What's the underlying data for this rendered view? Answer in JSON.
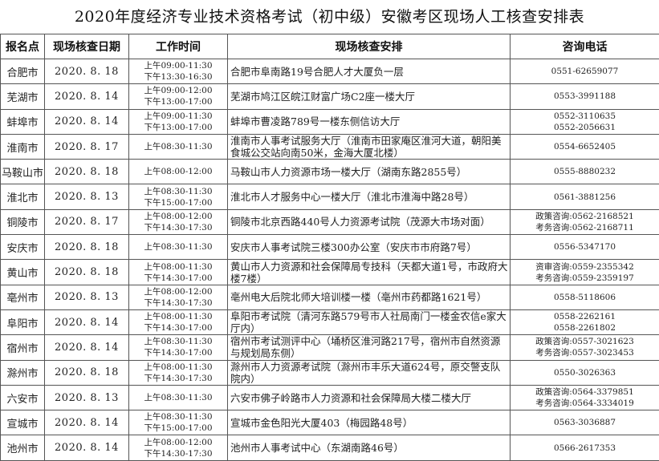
{
  "title": "2020年度经济专业技术资格考试（初中级）安徽考区现场人工核查安排表",
  "headers": [
    "报名点",
    "现场核查日期",
    "工作时间",
    "现场核查安排",
    "咨询电话"
  ],
  "rows": [
    {
      "city": "合肥市",
      "date": "2020. 8. 18",
      "times": [
        "上午09:00-11:30",
        "下午13:30-16:30"
      ],
      "address": "合肥市阜南路19号合肥人才大厦负一层",
      "phones": [
        "0551-62659077"
      ]
    },
    {
      "city": "芜湖市",
      "date": "2020. 8. 14",
      "times": [
        "上午09:00-12:00",
        "下午13:00-17:00"
      ],
      "address": "芜湖市鸠江区皖江财富广场C2座一楼大厅",
      "phones": [
        "0553-3991188"
      ]
    },
    {
      "city": "蚌埠市",
      "date": "2020. 8. 14",
      "times": [
        "上午09:00-11:30",
        "下午13:00-17:00"
      ],
      "address": "蚌埠市曹凌路789号一楼东侧信访大厅",
      "phones": [
        "0552-3110635",
        "0552-2056631"
      ]
    },
    {
      "city": "淮南市",
      "date": "2020. 8. 17",
      "times": [
        "上午08:30-11:30"
      ],
      "address": "淮南市人事考试服务大厅（淮南市田家庵区淮河大道，朝阳美食城公交站向南50米，金海大厦北楼）",
      "phones": [
        "0554-6652405"
      ]
    },
    {
      "city": "马鞍山市",
      "date": "2020. 8. 18",
      "times": [
        "上午08:00-12:00"
      ],
      "address": "马鞍山市人力资源市场一楼大厅（湖南东路2855号）",
      "phones": [
        "0555-8880232"
      ]
    },
    {
      "city": "淮北市",
      "date": "2020. 8. 13",
      "times": [
        "上午08:30-11:30",
        "下午15:00-17:00"
      ],
      "address": "淮北市人才服务中心一楼大厅（淮北市淮海中路28号）",
      "phones": [
        "0561-3881256"
      ]
    },
    {
      "city": "铜陵市",
      "date": "2020. 8. 17",
      "times": [
        "上午08:00-12:00",
        "下午14:30-17:30"
      ],
      "address": "铜陵市北京西路440号人力资源考试院（茂源大市场对面）",
      "phones": [
        "政策咨询:0562-2168521",
        "考务咨询:0562-2168711"
      ]
    },
    {
      "city": "安庆市",
      "date": "2020. 8. 18",
      "times": [
        "上午08:30-11:30"
      ],
      "address": "安庆市人事考试院三楼300办公室（安庆市市府路7号）",
      "phones": [
        "0556-5347170"
      ]
    },
    {
      "city": "黄山市",
      "date": "2020. 8. 18",
      "times": [
        "上午08:00-11:30",
        "下午14:30-17:00"
      ],
      "address": "黄山市人力资源和社会保障局专技科（天都大道1号，市政府大楼7楼）",
      "phones": [
        "资审咨询:0559-2355342",
        "考务咨询:0559-2359197"
      ]
    },
    {
      "city": "亳州市",
      "date": "2020. 8. 13",
      "times": [
        "上午08:00-12:00",
        "下午14:30-17:30"
      ],
      "address": "亳州电大后院北师大培训楼一楼（亳州市药都路1621号）",
      "phones": [
        "0558-5118606"
      ]
    },
    {
      "city": "阜阳市",
      "date": "2020. 8. 14",
      "times": [
        "上午08:00-11:30",
        "下午14:30-17:00"
      ],
      "address": "阜阳市考试院（清河东路579号市人社局南门一楼金农信e家大厅内）",
      "phones": [
        "0558-2262161",
        "0558-2261802"
      ]
    },
    {
      "city": "宿州市",
      "date": "2020. 8. 14",
      "times": [
        "上午08:30-11:30",
        "下午14:30-17:00"
      ],
      "address": "宿州市考试测评中心（埇桥区淮河路217号，宿州市自然资源与规划局东侧）",
      "phones": [
        "政策咨询:0557-3021623",
        "考务咨询:0557-3023453"
      ]
    },
    {
      "city": "滁州市",
      "date": "2020. 8. 18",
      "times": [
        "上午08:00-11:30",
        "下午14:30-17:30"
      ],
      "address": "滁州市人力资源考试院（滁州市丰乐大道624号，原交警支队院内）",
      "phones": [
        "0550-3026363"
      ]
    },
    {
      "city": "六安市",
      "date": "2020. 8. 13",
      "times": [
        "上午08:30-11:30"
      ],
      "address": "六安市佛子岭路市人力资源和社会保障局大楼二楼大厅",
      "phones": [
        "政策咨询:0564-3379851",
        "考务咨询:0564-3334019"
      ]
    },
    {
      "city": "宣城市",
      "date": "2020. 8. 14",
      "times": [
        "上午08:30-11:30",
        "下午15:00-17:00"
      ],
      "address": "宣城市金色阳光大厦403（梅园路48号）",
      "phones": [
        "0563-3036887"
      ]
    },
    {
      "city": "池州市",
      "date": "2020. 8. 14",
      "times": [
        "上午08:00-12:00",
        "下午14:30-17:30"
      ],
      "address": "池州市人事考试中心（东湖南路46号）",
      "phones": [
        "0566-2617353"
      ]
    }
  ]
}
